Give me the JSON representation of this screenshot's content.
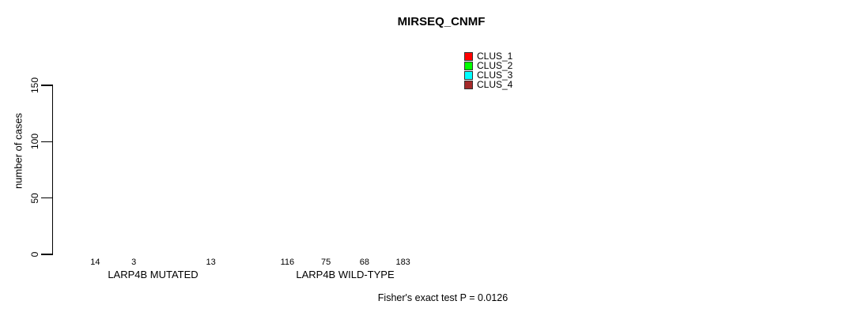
{
  "title": "MIRSEQ_CNMF",
  "footer": "Fisher's exact test P = 0.0126",
  "y_axis": {
    "label": "number of cases",
    "tick_labels": [
      "0",
      "50",
      "100",
      "150"
    ]
  },
  "legend": {
    "items": [
      {
        "label": "CLUS_1",
        "color": "#FF0000"
      },
      {
        "label": "CLUS_2",
        "color": "#00FF00"
      },
      {
        "label": "CLUS_3",
        "color": "#00FFFF"
      },
      {
        "label": "CLUS_4",
        "color": "#A52A2A"
      }
    ]
  },
  "chart_data": {
    "type": "bar",
    "title": "MIRSEQ_CNMF",
    "categories": [
      "LARP4B MUTATED",
      "LARP4B WILD-TYPE"
    ],
    "series": [
      {
        "name": "CLUS_1",
        "color": "#FF0000",
        "values": [
          14,
          116
        ]
      },
      {
        "name": "CLUS_2",
        "color": "#00FF00",
        "values": [
          3,
          75
        ]
      },
      {
        "name": "CLUS_3",
        "color": "#00FFFF",
        "values": [
          0,
          68
        ]
      },
      {
        "name": "CLUS_4",
        "color": "#A52A2A",
        "values": [
          13,
          183
        ]
      }
    ],
    "bar_value_labels": [
      [
        "14",
        "3",
        "",
        "13"
      ],
      [
        "116",
        "75",
        "68",
        "183"
      ]
    ],
    "xlabel": "",
    "ylabel": "number of cases",
    "yticks": [
      0,
      50,
      100,
      150
    ],
    "ylim": [
      0,
      190
    ],
    "grid": false,
    "legend_position": "top-right",
    "legend_box": false,
    "annotation": "Fisher's exact test P = 0.0126"
  }
}
